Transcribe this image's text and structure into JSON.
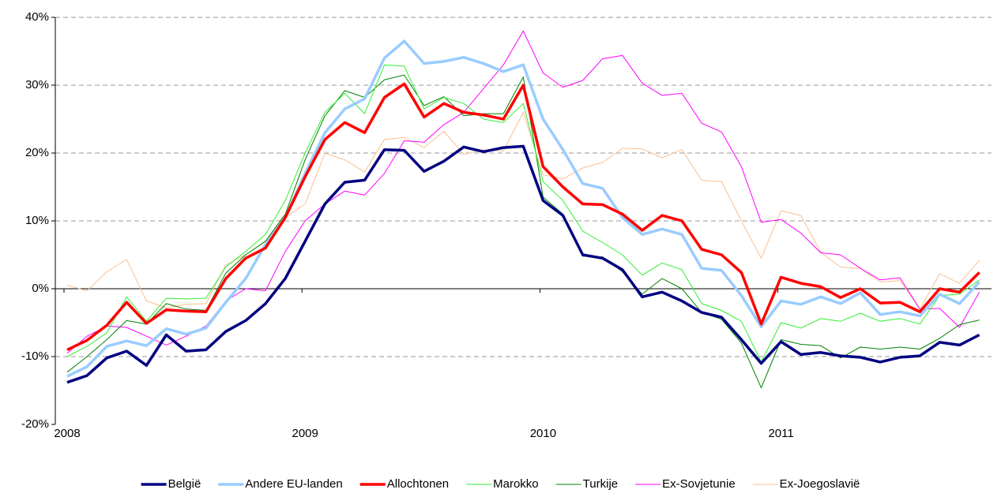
{
  "chart_data": {
    "type": "line",
    "categories": [
      "2008",
      null,
      null,
      null,
      null,
      null,
      null,
      null,
      null,
      null,
      null,
      null,
      "2009",
      null,
      null,
      null,
      null,
      null,
      null,
      null,
      null,
      null,
      null,
      null,
      "2010",
      null,
      null,
      null,
      null,
      null,
      null,
      null,
      null,
      null,
      null,
      null,
      "2011",
      null,
      null,
      null,
      null,
      null,
      null,
      null,
      null,
      null,
      null
    ],
    "ylim": [
      -20,
      40
    ],
    "yticks": [
      {
        "value": -20,
        "label": "-20%"
      },
      {
        "value": -10,
        "label": "-10%"
      },
      {
        "value": 0,
        "label": "0%"
      },
      {
        "value": 10,
        "label": "10%"
      },
      {
        "value": 20,
        "label": "20%"
      },
      {
        "value": 30,
        "label": "30%"
      },
      {
        "value": 40,
        "label": "40%"
      }
    ],
    "grid": true,
    "legend": "bottom",
    "series": [
      {
        "name": "België",
        "color": "#000080",
        "values": [
          -13.8,
          -12.8,
          -10.2,
          -9.2,
          -11.3,
          -6.8,
          -9.2,
          -9.0,
          -6.3,
          -4.7,
          -2.2,
          1.5,
          7,
          12.5,
          15.7,
          16,
          20.5,
          20.4,
          17.3,
          18.8,
          20.9,
          20.2,
          20.8,
          21,
          13,
          10.8,
          5,
          4.5,
          2.8,
          -1.2,
          -0.5,
          -1.8,
          -3.5,
          -4.2,
          -7.5,
          -11,
          -7.8,
          -9.7,
          -9.4,
          -9.9,
          -10.1,
          -10.8,
          -10.1,
          -9.9,
          -7.9,
          -8.3,
          -6.8
        ]
      },
      {
        "name": "Andere EU-landen",
        "color": "#99ccff",
        "values": [
          -12.9,
          -11.5,
          -8.5,
          -7.7,
          -8.4,
          -5.9,
          -6.7,
          -5.8,
          -2,
          1.5,
          6.5,
          10.5,
          17,
          23,
          26.5,
          28,
          34,
          36.5,
          33.2,
          33.5,
          34.1,
          33.2,
          32,
          33,
          25,
          20.5,
          15.5,
          14.8,
          10.5,
          8,
          8.8,
          8,
          3,
          2.7,
          -1,
          -5.6,
          -1.8,
          -2.3,
          -1.2,
          -2.2,
          -0.6,
          -3.8,
          -3.4,
          -4,
          -0.8,
          -2.2,
          1
        ]
      },
      {
        "name": "Allochtonen",
        "color": "#ff0000",
        "values": [
          -9,
          -7.6,
          -5.4,
          -2,
          -5.1,
          -3.1,
          -3.3,
          -3.4,
          1.5,
          4.5,
          6,
          10.5,
          16.5,
          22,
          24.5,
          23,
          28.2,
          30.2,
          25.3,
          27.3,
          26,
          25.6,
          25,
          30,
          18,
          15,
          12.5,
          12.4,
          11,
          8.6,
          10.8,
          10,
          5.8,
          5,
          2.4,
          -5.2,
          1.7,
          0.8,
          0.3,
          -1.3,
          0,
          -2.1,
          -2,
          -3.4,
          0,
          -0.5,
          2.4
        ]
      },
      {
        "name": "Marokko",
        "color": "#33ee33",
        "values": [
          -10,
          -8.5,
          -6.5,
          -1.2,
          -4.8,
          -1.4,
          -1.5,
          -1.4,
          3.2,
          5.5,
          8,
          13,
          20,
          26,
          28.8,
          25.8,
          33,
          32.8,
          26.5,
          28.2,
          27.3,
          25,
          24.5,
          27.3,
          15.8,
          13,
          8.5,
          6.8,
          5,
          2,
          3.8,
          2.8,
          -2.2,
          -3.2,
          -4.8,
          -10.8,
          -5,
          -5.8,
          -4.4,
          -4.8,
          -3.6,
          -4.8,
          -4.4,
          -5.2,
          -1,
          -0.8,
          1.3
        ]
      },
      {
        "name": "Turkije",
        "color": "#008000",
        "values": [
          -12.3,
          -10,
          -7.5,
          -4.7,
          -5.2,
          -2.2,
          -3,
          -3.2,
          2.3,
          5,
          7,
          11,
          19,
          25.5,
          29.2,
          28.2,
          30.8,
          31.5,
          27,
          28.3,
          25.5,
          25.8,
          25.8,
          31.2,
          13.5,
          11,
          4.8,
          4.7,
          2.5,
          -0.8,
          1.5,
          0,
          -3.5,
          -4.5,
          -8,
          -14.6,
          -7.5,
          -8.2,
          -8.4,
          -10.2,
          -8.6,
          -8.9,
          -8.6,
          -8.9,
          -7.3,
          -5.3,
          -4.6
        ]
      },
      {
        "name": "Ex-Sovjetunie",
        "color": "#ff00ff",
        "values": [
          -9.5,
          -7,
          -5.5,
          -5.7,
          -7,
          -8.3,
          -7,
          -5.5,
          -1.8,
          0,
          -0.3,
          5.5,
          10,
          12.5,
          14.4,
          13.8,
          17,
          21.8,
          21.6,
          24.2,
          26,
          29.5,
          33,
          38,
          31.8,
          29.7,
          30.7,
          33.9,
          34.4,
          30.3,
          28.5,
          28.8,
          24.4,
          23.1,
          18,
          9.8,
          10.2,
          8.2,
          5.3,
          5,
          3,
          1.3,
          1.6,
          -3,
          -2.9,
          -5.7,
          -0.5
        ]
      },
      {
        "name": "Ex-Joegoslavië",
        "color": "#fac090",
        "values": [
          0.5,
          -0.3,
          2.5,
          4.3,
          -1.8,
          -2.8,
          -2.3,
          -2.2,
          3.5,
          5,
          7,
          10.5,
          12.5,
          20,
          19,
          17.2,
          22,
          22.3,
          20.8,
          23.2,
          19.8,
          20.5,
          20.3,
          26,
          16.8,
          16.2,
          17.8,
          18.6,
          20.7,
          20.6,
          19.3,
          20.5,
          16,
          15.8,
          10,
          4.5,
          11.5,
          10.8,
          5.4,
          3.2,
          3,
          1,
          1.2,
          -3,
          2.2,
          0.8,
          4.2
        ]
      }
    ]
  }
}
